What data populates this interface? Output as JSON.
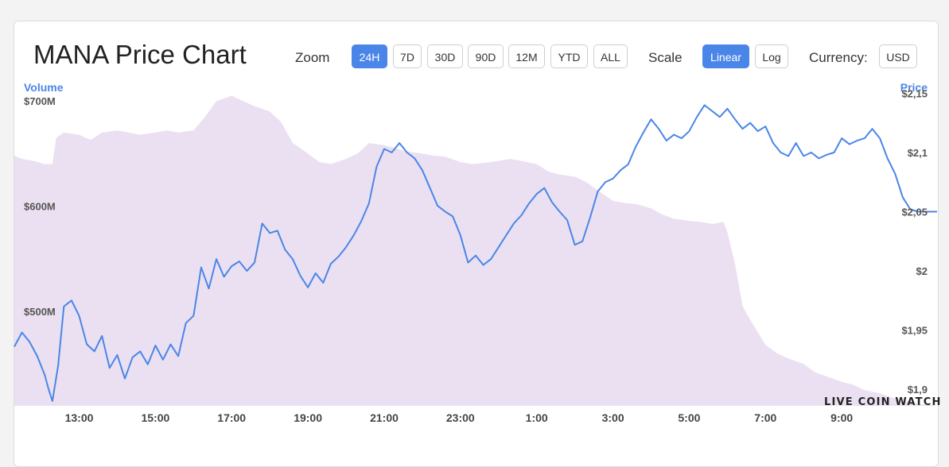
{
  "header": {
    "title": "MANA Price Chart",
    "zoom_label": "Zoom",
    "zoom_options": [
      "24H",
      "7D",
      "30D",
      "90D",
      "12M",
      "YTD",
      "ALL"
    ],
    "zoom_selected": "24H",
    "scale_label": "Scale",
    "scale_options": [
      "Linear",
      "Log"
    ],
    "scale_selected": "Linear",
    "currency_label": "Currency:",
    "currency_value": "USD"
  },
  "brand": {
    "logo_text": "LIVE COIN WATCH"
  },
  "colors": {
    "price_line": "#4a86e8",
    "volume_area": "#ebe0f1",
    "accent": "#4a86e8"
  },
  "chart_data": {
    "type": "line",
    "x_ticks": [
      "13:00",
      "15:00",
      "17:00",
      "19:00",
      "21:00",
      "23:00",
      "1:00",
      "3:00",
      "5:00",
      "7:00",
      "9:00"
    ],
    "x_tick_hours": [
      13,
      15,
      17,
      19,
      21,
      23,
      25,
      27,
      29,
      31,
      33
    ],
    "xlim": [
      11.3,
      35.5
    ],
    "y_left_label": "Volume",
    "y_left_ticks": [
      "$700M",
      "$600M",
      "$500M"
    ],
    "y_left_tick_values": [
      700,
      600,
      500
    ],
    "y_left_lim": [
      410,
      713
    ],
    "y_right_label": "Price",
    "y_right_ticks": [
      "$2,15",
      "$2,1",
      "$2,05",
      "$2",
      "$1,95",
      "$1,9"
    ],
    "y_right_tick_values": [
      2.15,
      2.1,
      2.05,
      2.0,
      1.95,
      1.9
    ],
    "y_right_lim": [
      1.886,
      2.155
    ],
    "series": [
      {
        "name": "Price",
        "axis": "right",
        "hours": [
          11.3,
          11.5,
          11.7,
          11.9,
          12.1,
          12.2,
          12.3,
          12.45,
          12.6,
          12.8,
          13.0,
          13.2,
          13.4,
          13.6,
          13.8,
          14.0,
          14.2,
          14.4,
          14.6,
          14.8,
          15.0,
          15.2,
          15.4,
          15.6,
          15.8,
          16.0,
          16.2,
          16.4,
          16.6,
          16.8,
          17.0,
          17.2,
          17.4,
          17.6,
          17.8,
          18.0,
          18.2,
          18.4,
          18.6,
          18.8,
          19.0,
          19.2,
          19.4,
          19.6,
          19.8,
          20.0,
          20.2,
          20.4,
          20.6,
          20.8,
          21.0,
          21.2,
          21.4,
          21.6,
          21.8,
          22.0,
          22.2,
          22.4,
          22.6,
          22.8,
          23.0,
          23.2,
          23.4,
          23.6,
          23.8,
          24.0,
          24.2,
          24.4,
          24.6,
          24.8,
          25.0,
          25.2,
          25.4,
          25.6,
          25.8,
          26.0,
          26.2,
          26.4,
          26.6,
          26.8,
          27.0,
          27.2,
          27.4,
          27.6,
          27.8,
          28.0,
          28.2,
          28.4,
          28.6,
          28.8,
          29.0,
          29.2,
          29.4,
          29.6,
          29.8,
          30.0,
          30.2,
          30.4,
          30.6,
          30.8,
          31.0,
          31.2,
          31.4,
          31.6,
          31.8,
          32.0,
          32.2,
          32.4,
          32.6,
          32.8,
          33.0,
          33.2,
          33.4,
          33.6,
          33.8,
          34.0,
          34.2,
          34.4,
          34.6,
          34.8,
          35.0,
          35.2,
          35.5
        ],
        "values": [
          1.936,
          1.948,
          1.94,
          1.928,
          1.912,
          1.9,
          1.89,
          1.92,
          1.97,
          1.975,
          1.962,
          1.938,
          1.932,
          1.945,
          1.918,
          1.929,
          1.909,
          1.927,
          1.932,
          1.921,
          1.937,
          1.925,
          1.938,
          1.928,
          1.956,
          1.962,
          2.003,
          1.985,
          2.01,
          1.995,
          2.004,
          2.008,
          2.0,
          2.007,
          2.04,
          2.032,
          2.034,
          2.018,
          2.01,
          1.996,
          1.986,
          1.998,
          1.99,
          2.006,
          2.012,
          2.02,
          2.03,
          2.042,
          2.057,
          2.088,
          2.103,
          2.1,
          2.108,
          2.1,
          2.095,
          2.085,
          2.07,
          2.055,
          2.05,
          2.046,
          2.03,
          2.007,
          2.013,
          2.005,
          2.01,
          2.02,
          2.03,
          2.04,
          2.047,
          2.057,
          2.065,
          2.07,
          2.058,
          2.05,
          2.043,
          2.022,
          2.025,
          2.045,
          2.067,
          2.075,
          2.078,
          2.085,
          2.09,
          2.105,
          2.117,
          2.128,
          2.12,
          2.11,
          2.115,
          2.112,
          2.118,
          2.13,
          2.14,
          2.135,
          2.13,
          2.137,
          2.128,
          2.12,
          2.125,
          2.118,
          2.122,
          2.108,
          2.1,
          2.097,
          2.108,
          2.097,
          2.1,
          2.095,
          2.098,
          2.1,
          2.112,
          2.107,
          2.11,
          2.112,
          2.12,
          2.112,
          2.095,
          2.082,
          2.062,
          2.052,
          2.05,
          2.05,
          2.05
        ],
        "color": "#4a86e8"
      },
      {
        "name": "Volume",
        "axis": "left",
        "hours": [
          11.3,
          11.5,
          11.8,
          12.1,
          12.3,
          12.4,
          12.6,
          13.0,
          13.3,
          13.6,
          14.0,
          14.3,
          14.6,
          15.0,
          15.3,
          15.6,
          16.0,
          16.3,
          16.6,
          17.0,
          17.3,
          17.6,
          18.0,
          18.3,
          18.6,
          19.0,
          19.3,
          19.6,
          20.0,
          20.3,
          20.6,
          21.0,
          21.3,
          21.6,
          22.0,
          22.3,
          22.6,
          23.0,
          23.3,
          23.6,
          24.0,
          24.3,
          24.6,
          25.0,
          25.3,
          25.6,
          26.0,
          26.3,
          26.6,
          27.0,
          27.3,
          27.6,
          28.0,
          28.3,
          28.6,
          29.0,
          29.3,
          29.6,
          29.9,
          30.0,
          30.2,
          30.4,
          30.6,
          30.8,
          31.0,
          31.3,
          31.6,
          32.0,
          32.3,
          32.6,
          33.0,
          33.3,
          33.6,
          34.0,
          34.3,
          34.6,
          35.0,
          35.5
        ],
        "values": [
          648,
          645,
          643,
          640,
          640,
          665,
          670,
          668,
          663,
          670,
          672,
          670,
          668,
          670,
          672,
          670,
          672,
          685,
          700,
          705,
          700,
          695,
          690,
          680,
          660,
          650,
          642,
          640,
          645,
          650,
          660,
          658,
          655,
          652,
          650,
          648,
          647,
          642,
          640,
          641,
          643,
          645,
          643,
          640,
          633,
          630,
          628,
          623,
          615,
          605,
          603,
          602,
          598,
          592,
          588,
          586,
          585,
          583,
          585,
          575,
          545,
          505,
          492,
          480,
          468,
          460,
          455,
          450,
          442,
          438,
          433,
          430,
          425,
          422,
          418,
          415,
          412,
          410
        ],
        "color": "#ebe0f1"
      }
    ],
    "grid": false,
    "legend": "none"
  }
}
